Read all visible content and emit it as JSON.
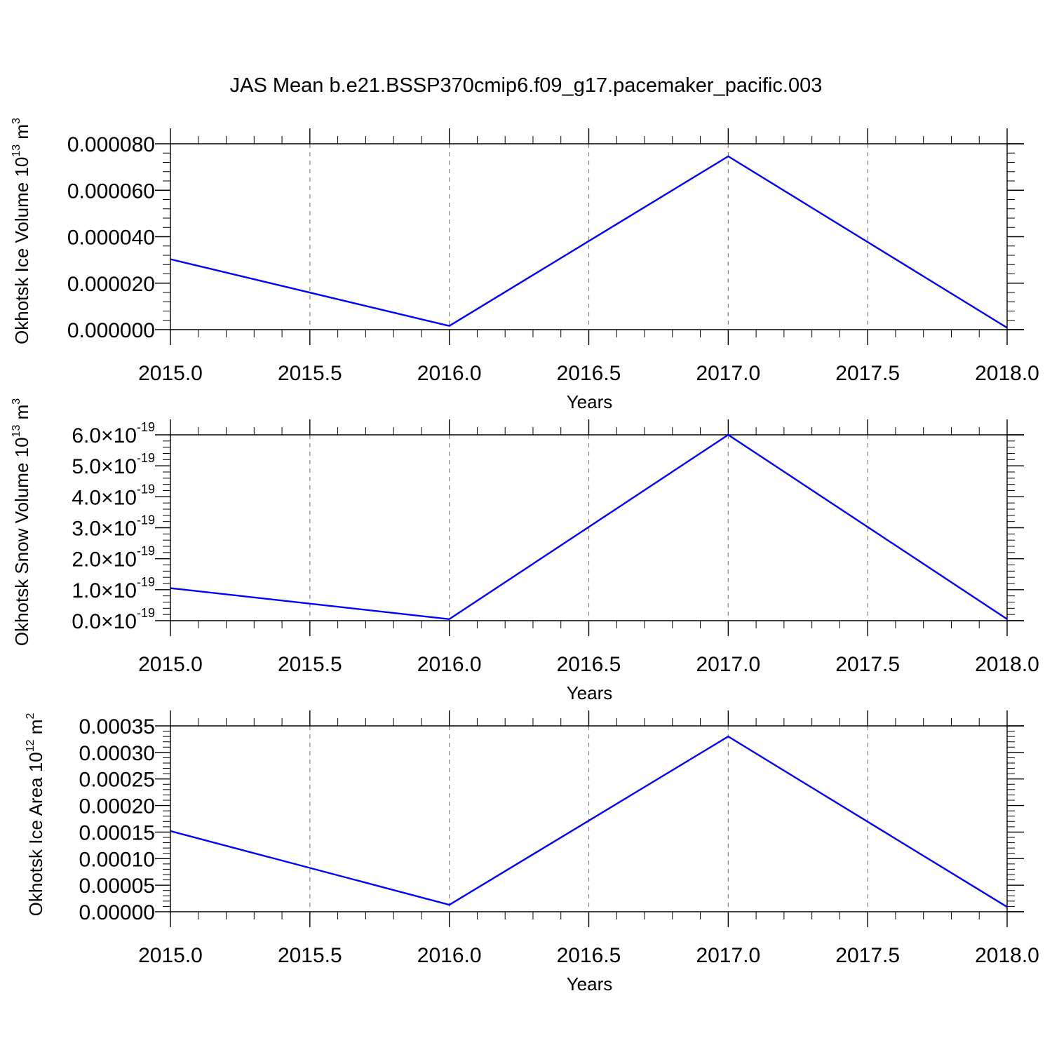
{
  "figure": {
    "title": "JAS Mean b.e21.BSSP370cmip6.f09_g17.pacemaker_pacific.003",
    "line_color": "#0000ff",
    "gridline_color": "#888888"
  },
  "chart_data": [
    {
      "type": "line",
      "title": "",
      "xlabel": "Years",
      "ylabel": {
        "prefix": "Okhotsk Ice Volume 10",
        "exponent": "13",
        "unit": " m",
        "unit_exponent": "3"
      },
      "x": [
        2015,
        2016,
        2017,
        2018
      ],
      "series": [
        {
          "values": [
            3.03e-05,
            1.6e-06,
            7.46e-05,
            8e-07
          ]
        }
      ],
      "xlim": [
        2015,
        2018
      ],
      "ylim": [
        0,
        8e-05
      ],
      "xticks": [
        2015,
        2015.5,
        2016,
        2016.5,
        2017,
        2017.5,
        2018
      ],
      "xtick_labels": [
        "2015.0",
        "2015.5",
        "2016.0",
        "2016.5",
        "2017.0",
        "2017.5",
        "2018.0"
      ],
      "yticks": [
        0,
        2e-05,
        4e-05,
        6e-05,
        8e-05
      ],
      "ytick_labels": [
        {
          "text": "0.000000"
        },
        {
          "text": "0.000020"
        },
        {
          "text": "0.000040"
        },
        {
          "text": "0.000060"
        },
        {
          "text": "0.000080"
        }
      ],
      "x_gridlines": [
        2015.5,
        2016,
        2016.5,
        2017,
        2017.5
      ],
      "grid": "vertical dashed"
    },
    {
      "type": "line",
      "title": "",
      "xlabel": "Years",
      "ylabel": {
        "prefix": "Okhotsk Snow Volume 10",
        "exponent": "13",
        "unit": " m",
        "unit_exponent": "3"
      },
      "x": [
        2015,
        2016,
        2017,
        2018
      ],
      "series": [
        {
          "values": [
            1.05e-19,
            5e-21,
            6e-19,
            5e-21
          ]
        }
      ],
      "xlim": [
        2015,
        2018
      ],
      "ylim": [
        0,
        6e-19
      ],
      "xticks": [
        2015,
        2015.5,
        2016,
        2016.5,
        2017,
        2017.5,
        2018
      ],
      "xtick_labels": [
        "2015.0",
        "2015.5",
        "2016.0",
        "2016.5",
        "2017.0",
        "2017.5",
        "2018.0"
      ],
      "yticks": [
        0,
        1e-19,
        2e-19,
        3e-19,
        4e-19,
        5e-19,
        6e-19
      ],
      "ytick_labels": [
        {
          "mantissa": "0.0",
          "times": "×",
          "base": "10",
          "exponent": "-19"
        },
        {
          "mantissa": "1.0",
          "times": "×",
          "base": "10",
          "exponent": "-19"
        },
        {
          "mantissa": "2.0",
          "times": "×",
          "base": "10",
          "exponent": "-19"
        },
        {
          "mantissa": "3.0",
          "times": "×",
          "base": "10",
          "exponent": "-19"
        },
        {
          "mantissa": "4.0",
          "times": "×",
          "base": "10",
          "exponent": "-19"
        },
        {
          "mantissa": "5.0",
          "times": "×",
          "base": "10",
          "exponent": "-19"
        },
        {
          "mantissa": "6.0",
          "times": "×",
          "base": "10",
          "exponent": "-19"
        }
      ],
      "x_gridlines": [
        2015.5,
        2016,
        2016.5,
        2017,
        2017.5
      ],
      "grid": "vertical dashed"
    },
    {
      "type": "line",
      "title": "",
      "xlabel": "Years",
      "ylabel": {
        "prefix": "Okhotsk Ice Area 10",
        "exponent": "12",
        "unit": " m",
        "unit_exponent": "2"
      },
      "x": [
        2015,
        2016,
        2017,
        2018
      ],
      "series": [
        {
          "values": [
            0.000152,
            1.3e-05,
            0.00033,
            9e-06
          ]
        }
      ],
      "xlim": [
        2015,
        2018
      ],
      "ylim": [
        0,
        0.00035
      ],
      "xticks": [
        2015,
        2015.5,
        2016,
        2016.5,
        2017,
        2017.5,
        2018
      ],
      "xtick_labels": [
        "2015.0",
        "2015.5",
        "2016.0",
        "2016.5",
        "2017.0",
        "2017.5",
        "2018.0"
      ],
      "yticks": [
        0,
        5e-05,
        0.0001,
        0.00015,
        0.0002,
        0.00025,
        0.0003,
        0.00035
      ],
      "ytick_labels": [
        {
          "text": "0.00000"
        },
        {
          "text": "0.00005"
        },
        {
          "text": "0.00010"
        },
        {
          "text": "0.00015"
        },
        {
          "text": "0.00020"
        },
        {
          "text": "0.00025"
        },
        {
          "text": "0.00030"
        },
        {
          "text": "0.00035"
        }
      ],
      "x_gridlines": [
        2015.5,
        2016,
        2016.5,
        2017,
        2017.5
      ],
      "grid": "vertical dashed"
    }
  ]
}
